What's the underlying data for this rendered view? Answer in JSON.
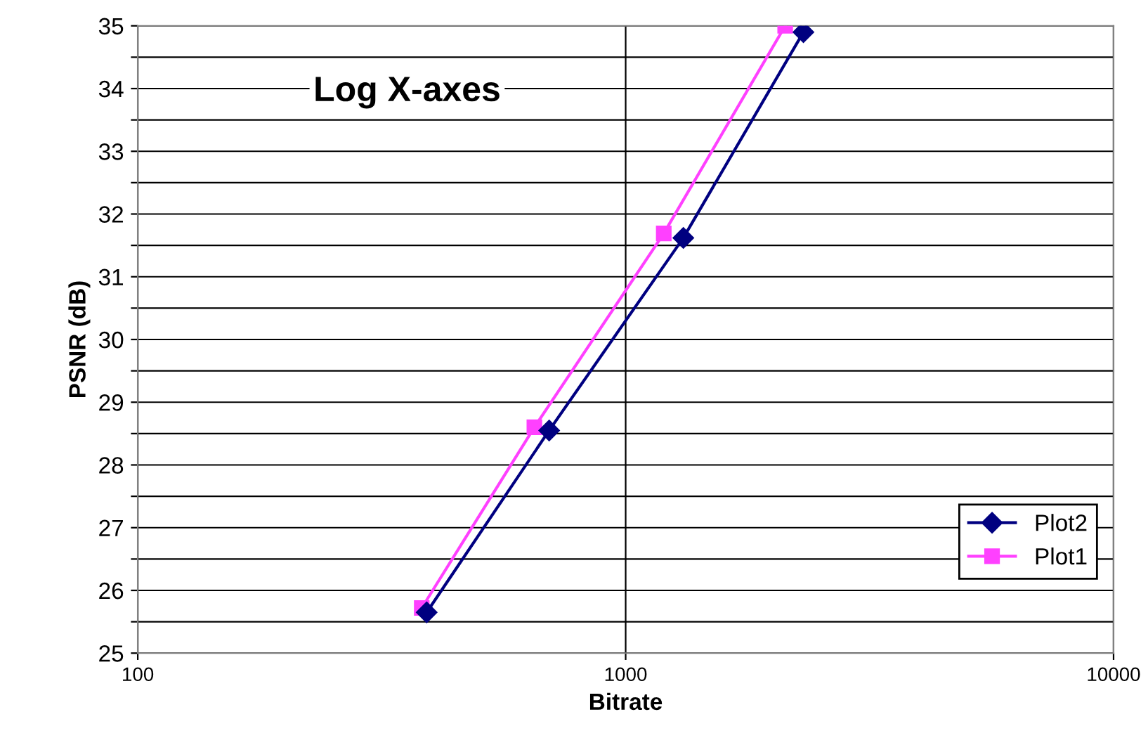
{
  "chart_data": {
    "type": "line",
    "xlabel": "Bitrate",
    "ylabel": "PSNR (dB)",
    "annotations": [
      "Log X-axes"
    ],
    "log": "x",
    "xlim": [
      100,
      10000
    ],
    "xticks": [
      100,
      1000,
      10000
    ],
    "ylim": [
      25,
      35
    ],
    "yticks": [
      25,
      {
        "value": 25.5,
        "label": null
      },
      26,
      {
        "value": 26.5,
        "label": null
      },
      27,
      {
        "value": 27.5,
        "label": null
      },
      28,
      {
        "value": 28.5,
        "label": null
      },
      29,
      {
        "value": 29.5,
        "label": null
      },
      30,
      {
        "value": 30.5,
        "label": null
      },
      31,
      {
        "value": 31.5,
        "label": null
      },
      32,
      {
        "value": 32.5,
        "label": null
      },
      33,
      {
        "value": 33.5,
        "label": null
      },
      34,
      {
        "value": 34.5,
        "label": null
      },
      35
    ],
    "grid": true,
    "legend": "bottom right",
    "series": [
      {
        "name": "Plot2",
        "color": "#000080",
        "marker": "diamond",
        "x": [
          391,
          697,
          1313,
          2314
        ],
        "values": [
          25.65,
          28.55,
          31.62,
          34.9
        ]
      },
      {
        "name": "Plot1",
        "color": "#ff40ff",
        "marker": "square",
        "x": [
          382,
          650,
          1197,
          2123
        ],
        "values": [
          25.72,
          28.6,
          31.69,
          35.0
        ]
      }
    ]
  }
}
